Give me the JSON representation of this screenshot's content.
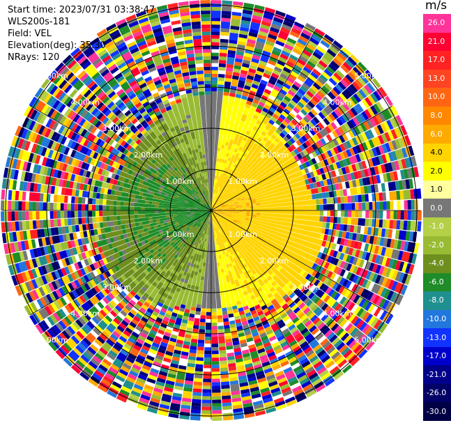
{
  "header": {
    "start_time": "Start time: 2023/07/31 03:38:47",
    "instrument": "WLS200s-181",
    "field": "Field: VEL",
    "elevation": "Elevation(deg): 35.30",
    "nrays": "NRays: 120"
  },
  "colorbar": {
    "unit": "m/s",
    "levels": [
      {
        "label": "26.0",
        "color": "#ff3399"
      },
      {
        "label": "21.0",
        "color": "#ff0033"
      },
      {
        "label": "17.0",
        "color": "#ff2222"
      },
      {
        "label": "13.0",
        "color": "#ff4422"
      },
      {
        "label": "10.0",
        "color": "#ff6611"
      },
      {
        "label": "8.0",
        "color": "#ff8800"
      },
      {
        "label": "6.0",
        "color": "#ffaa00"
      },
      {
        "label": "4.0",
        "color": "#ffd400"
      },
      {
        "label": "2.0",
        "color": "#ffff00"
      },
      {
        "label": "1.0",
        "color": "#ffffa0"
      },
      {
        "label": "0.0",
        "color": "#777777"
      },
      {
        "label": "-1.0",
        "color": "#b4d046"
      },
      {
        "label": "-2.0",
        "color": "#99bb33"
      },
      {
        "label": "-4.0",
        "color": "#6e8f1e"
      },
      {
        "label": "-6.0",
        "color": "#1e8c28"
      },
      {
        "label": "-8.0",
        "color": "#208f8f"
      },
      {
        "label": "-10.0",
        "color": "#2277dd"
      },
      {
        "label": "-13.0",
        "color": "#1133ff"
      },
      {
        "label": "-17.0",
        "color": "#0000cc"
      },
      {
        "label": "-21.0",
        "color": "#00008b"
      },
      {
        "label": "-26.0",
        "color": "#000066"
      },
      {
        "label": "-30.0",
        "color": "#000044"
      }
    ]
  },
  "range_rings": [
    {
      "label": "1.00km"
    },
    {
      "label": "2.00km"
    },
    {
      "label": "3.00km"
    },
    {
      "label": "4.00km"
    },
    {
      "label": "5.00km"
    }
  ]
}
